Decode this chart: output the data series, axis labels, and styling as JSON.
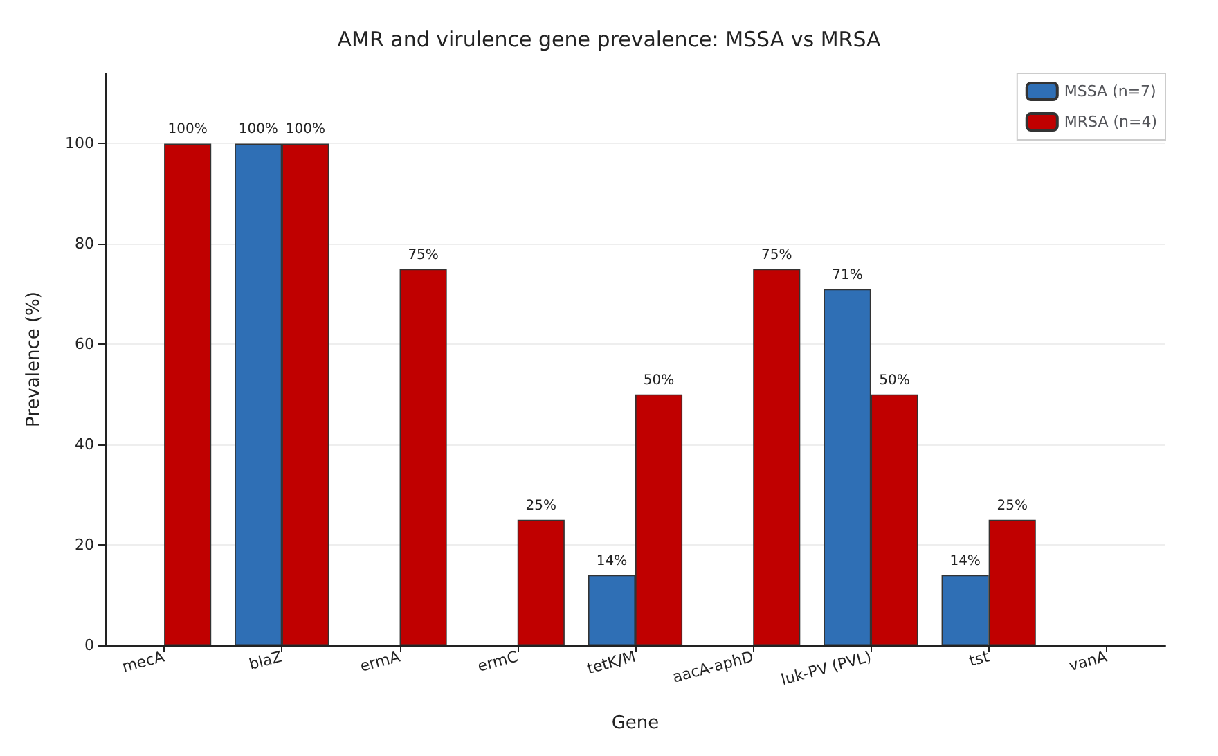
{
  "chart_data": {
    "type": "bar",
    "title": "AMR and virulence gene prevalence: MSSA vs MRSA",
    "xlabel": "Gene",
    "ylabel": "Prevalence (%)",
    "categories": [
      "mecA",
      "blaZ",
      "ermA",
      "ermC",
      "tetK/M",
      "aacA-aphD",
      "luk-PV (PVL)",
      "tst",
      "vanA"
    ],
    "series": [
      {
        "name": "MSSA (n=7)",
        "color": "#2f6fb5",
        "values": [
          0,
          100,
          0,
          0,
          14,
          0,
          71,
          14,
          0
        ],
        "value_labels": [
          null,
          "100%",
          null,
          null,
          "14%",
          null,
          "71%",
          "14%",
          null
        ]
      },
      {
        "name": "MRSA (n=4)",
        "color": "#c00000",
        "values": [
          100,
          100,
          75,
          25,
          50,
          75,
          50,
          25,
          0
        ],
        "value_labels": [
          "100%",
          "100%",
          "75%",
          "25%",
          "50%",
          "75%",
          "50%",
          "25%",
          null
        ]
      }
    ],
    "ylim": [
      0,
      114
    ],
    "yticks": [
      0,
      20,
      40,
      60,
      80,
      100
    ],
    "grid": "y",
    "legend": "top right"
  }
}
